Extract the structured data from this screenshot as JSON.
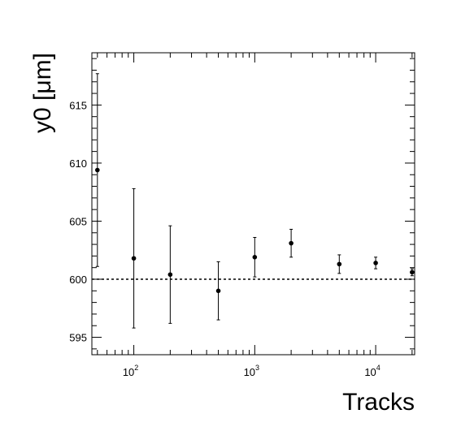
{
  "chart_data": {
    "type": "scatter",
    "xlabel": "Tracks",
    "ylabel": "y0 [μm]",
    "x_scale": "log",
    "xlim": [
      45,
      21000
    ],
    "ylim": [
      593.5,
      619.5
    ],
    "reference_line": {
      "y": 600,
      "style": "dashed"
    },
    "x_ticks": [
      {
        "value": 100,
        "base": "10",
        "exp": "2"
      },
      {
        "value": 1000,
        "base": "10",
        "exp": "3"
      },
      {
        "value": 10000,
        "base": "10",
        "exp": "4"
      }
    ],
    "y_ticks": [
      {
        "value": 595,
        "label": "595"
      },
      {
        "value": 600,
        "label": "600"
      },
      {
        "value": 605,
        "label": "605"
      },
      {
        "value": 610,
        "label": "610"
      },
      {
        "value": 615,
        "label": "615"
      }
    ],
    "points": [
      {
        "x": 50,
        "y": 609.4,
        "err": 8.3
      },
      {
        "x": 100,
        "y": 601.8,
        "err": 6.0
      },
      {
        "x": 200,
        "y": 600.4,
        "err": 4.2
      },
      {
        "x": 500,
        "y": 599.0,
        "err": 2.5
      },
      {
        "x": 1000,
        "y": 601.9,
        "err": 1.7
      },
      {
        "x": 2000,
        "y": 603.1,
        "err": 1.2
      },
      {
        "x": 5000,
        "y": 601.3,
        "err": 0.8
      },
      {
        "x": 10000,
        "y": 601.4,
        "err": 0.5
      },
      {
        "x": 20000,
        "y": 600.6,
        "err": 0.3
      }
    ]
  }
}
